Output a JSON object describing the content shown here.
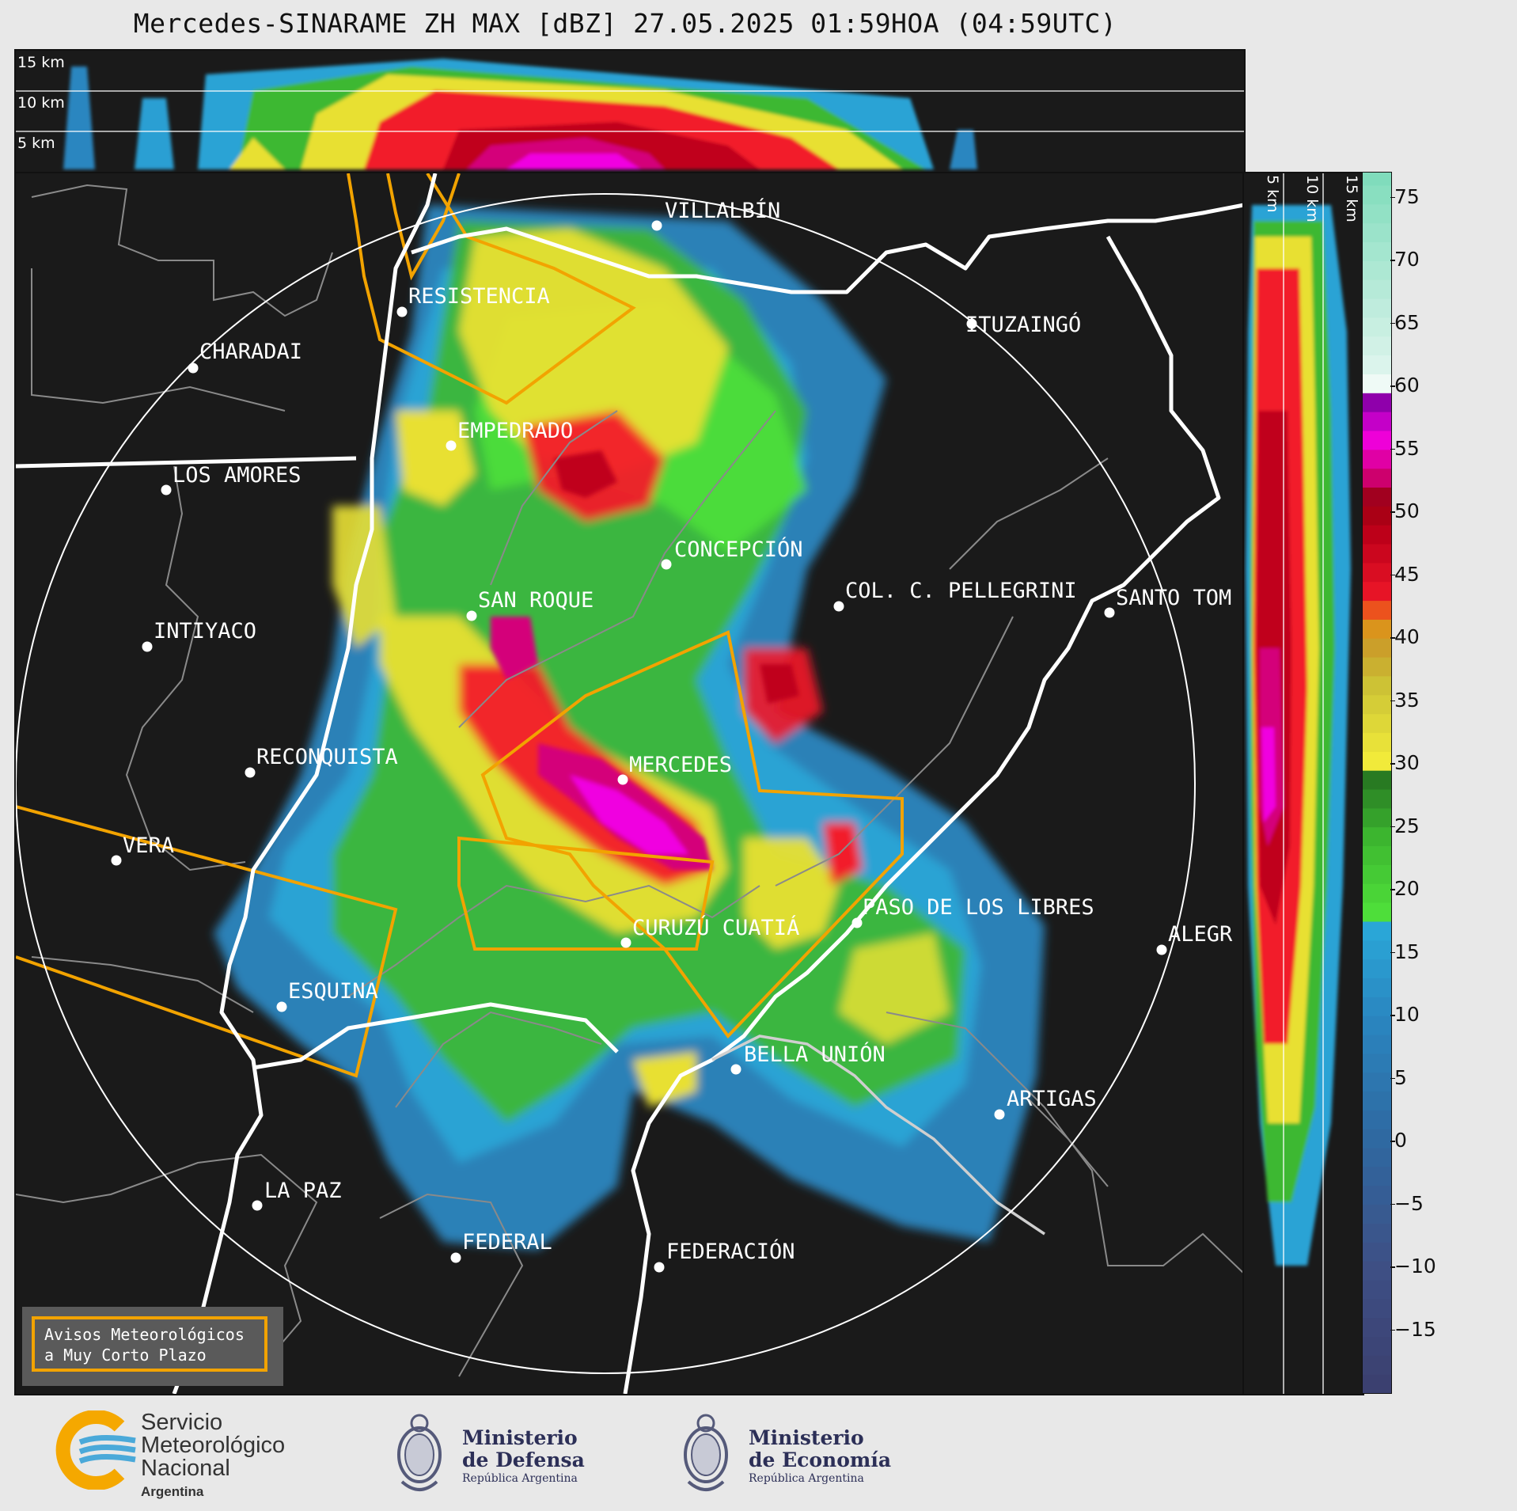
{
  "title": "Mercedes-SINARAME ZH MAX [dBZ] 27.05.2025 01:59HOA (04:59UTC)",
  "top_panel": {
    "height_labels": [
      "15 km",
      "10 km",
      "5 km"
    ]
  },
  "right_panel": {
    "height_labels": [
      "5 km",
      "10 km",
      "15 km"
    ]
  },
  "map": {
    "cities": [
      {
        "name": "VILLALBÍN"
      },
      {
        "name": "RESISTENCIA"
      },
      {
        "name": "ITUZAINGÓ"
      },
      {
        "name": "CHARADAI"
      },
      {
        "name": "EMPEDRADO"
      },
      {
        "name": "LOS AMORES"
      },
      {
        "name": "CONCEPCIÓN"
      },
      {
        "name": "SAN ROQUE"
      },
      {
        "name": "COL. C. PELLEGRINI"
      },
      {
        "name": "SANTO TOM"
      },
      {
        "name": "INTIYACO"
      },
      {
        "name": "RECONQUISTA"
      },
      {
        "name": "MERCEDES"
      },
      {
        "name": "VERA"
      },
      {
        "name": "PASO DE LOS LIBRES"
      },
      {
        "name": "CURUZÚ CUATIÁ"
      },
      {
        "name": "ALEGR"
      },
      {
        "name": "ESQUINA"
      },
      {
        "name": "BELLA UNIÓN"
      },
      {
        "name": "ARTIGAS"
      },
      {
        "name": "LA PAZ"
      },
      {
        "name": "FEDERAL"
      },
      {
        "name": "FEDERACIÓN"
      }
    ]
  },
  "legend": {
    "line1": "Avisos Meteorológicos",
    "line2": "a Muy Corto Plazo",
    "border_color": "#f2a300"
  },
  "colorbar": {
    "unit": "dBZ",
    "min": -20,
    "max": 77,
    "ticks": [
      "75",
      "70",
      "65",
      "60",
      "55",
      "50",
      "45",
      "40",
      "35",
      "30",
      "25",
      "20",
      "15",
      "10",
      "5",
      "0",
      "−5",
      "−10",
      "−15"
    ],
    "tick_values": [
      75,
      70,
      65,
      60,
      55,
      50,
      45,
      40,
      35,
      30,
      25,
      20,
      15,
      10,
      5,
      0,
      -5,
      -10,
      -15
    ],
    "stops": [
      {
        "v": -20,
        "c": "#3b3f6e"
      },
      {
        "v": -10,
        "c": "#3e4f85"
      },
      {
        "v": 0,
        "c": "#2f68a0"
      },
      {
        "v": 10,
        "c": "#2a86c0"
      },
      {
        "v": 17.5,
        "c": "#2aa9d9"
      },
      {
        "v": 18,
        "c": "#4fe03a"
      },
      {
        "v": 24,
        "c": "#3db830"
      },
      {
        "v": 29.9,
        "c": "#236b1f"
      },
      {
        "v": 30,
        "c": "#f3ec3a"
      },
      {
        "v": 36,
        "c": "#cdc536"
      },
      {
        "v": 39,
        "c": "#c8a12c"
      },
      {
        "v": 42,
        "c": "#e68a10"
      },
      {
        "v": 42.5,
        "c": "#f21a2a"
      },
      {
        "v": 48,
        "c": "#c0001a"
      },
      {
        "v": 51,
        "c": "#9a0012"
      },
      {
        "v": 53,
        "c": "#d4007a"
      },
      {
        "v": 56,
        "c": "#f000e0"
      },
      {
        "v": 58.9,
        "c": "#8a00a8"
      },
      {
        "v": 59,
        "c": "#ffffff"
      },
      {
        "v": 62,
        "c": "#d8f3ea"
      },
      {
        "v": 77,
        "c": "#7fdcbb"
      }
    ]
  },
  "footer": {
    "smn_line1": "Servicio",
    "smn_line2": "Meteorológico",
    "smn_line3": "Nacional",
    "smn_country": "Argentina",
    "defensa_line1": "Ministerio",
    "defensa_line2": "de Defensa",
    "defensa_sub": "República Argentina",
    "economia_line1": "Ministerio",
    "economia_line2": "de Economía",
    "economia_sub": "República Argentina"
  }
}
